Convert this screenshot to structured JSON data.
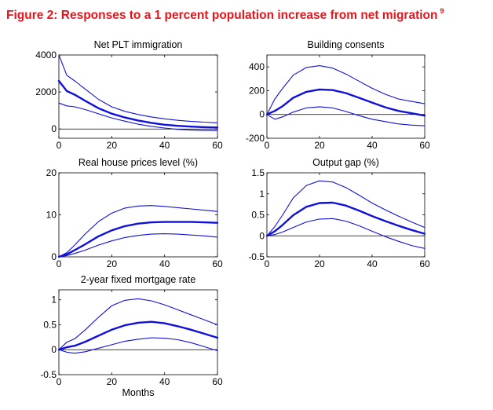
{
  "figure": {
    "title": "Figure 2: Responses to a 1 percent population increase from net migration",
    "footnote": "9",
    "line_color": "#1010d8",
    "title_color": "#e8141b",
    "xlabel": "Months"
  },
  "chart_data": [
    {
      "type": "line",
      "title": "Net PLT immigration",
      "xlim": [
        0,
        60
      ],
      "ylim": [
        -500,
        4000
      ],
      "xticks": [
        0,
        20,
        40,
        60
      ],
      "yticks": [
        0,
        2000,
        4000
      ],
      "x": [
        0,
        3,
        6,
        10,
        15,
        20,
        25,
        30,
        35,
        40,
        45,
        50,
        55,
        60
      ],
      "series": [
        {
          "role": "upper",
          "values": [
            4000,
            2900,
            2600,
            2150,
            1600,
            1200,
            950,
            780,
            650,
            550,
            470,
            410,
            370,
            330
          ]
        },
        {
          "role": "median",
          "values": [
            2600,
            2050,
            1850,
            1520,
            1120,
            830,
            620,
            460,
            330,
            230,
            170,
            130,
            100,
            80
          ]
        },
        {
          "role": "lower",
          "values": [
            1400,
            1250,
            1200,
            1050,
            820,
            600,
            420,
            260,
            140,
            50,
            -20,
            -60,
            -80,
            -90
          ]
        }
      ],
      "zero_line": true
    },
    {
      "type": "line",
      "title": "Building consents",
      "xlim": [
        0,
        60
      ],
      "ylim": [
        -200,
        500
      ],
      "xticks": [
        0,
        20,
        40,
        60
      ],
      "yticks": [
        -200,
        0,
        200,
        400
      ],
      "x": [
        0,
        3,
        6,
        10,
        15,
        20,
        25,
        30,
        35,
        40,
        45,
        50,
        55,
        60
      ],
      "series": [
        {
          "role": "upper",
          "values": [
            0,
            130,
            220,
            330,
            395,
            410,
            390,
            340,
            280,
            220,
            170,
            130,
            110,
            90
          ]
        },
        {
          "role": "median",
          "values": [
            0,
            30,
            70,
            140,
            190,
            210,
            205,
            180,
            140,
            100,
            60,
            30,
            10,
            -10
          ]
        },
        {
          "role": "lower",
          "values": [
            0,
            -40,
            -20,
            20,
            55,
            65,
            55,
            25,
            -10,
            -40,
            -60,
            -80,
            -90,
            -95
          ]
        }
      ],
      "zero_line": true
    },
    {
      "type": "line",
      "title": "Real house prices level (%)",
      "xlim": [
        0,
        60
      ],
      "ylim": [
        0,
        20
      ],
      "xticks": [
        0,
        20,
        40,
        60
      ],
      "yticks": [
        0,
        10,
        20
      ],
      "x": [
        0,
        3,
        6,
        10,
        15,
        20,
        25,
        30,
        35,
        40,
        45,
        50,
        55,
        60
      ],
      "series": [
        {
          "role": "upper",
          "values": [
            0,
            1.0,
            2.8,
            5.5,
            8.4,
            10.4,
            11.6,
            12.1,
            12.2,
            12.0,
            11.7,
            11.4,
            11.1,
            10.8
          ]
        },
        {
          "role": "median",
          "values": [
            0,
            0.6,
            1.6,
            3.0,
            4.9,
            6.3,
            7.3,
            7.9,
            8.2,
            8.3,
            8.3,
            8.3,
            8.2,
            8.1
          ]
        },
        {
          "role": "lower",
          "values": [
            0,
            0.3,
            0.8,
            1.6,
            2.8,
            3.8,
            4.6,
            5.1,
            5.4,
            5.5,
            5.4,
            5.2,
            5.0,
            4.7
          ]
        }
      ],
      "zero_line": false
    },
    {
      "type": "line",
      "title": "Output gap (%)",
      "xlim": [
        0,
        60
      ],
      "ylim": [
        -0.5,
        1.5
      ],
      "xticks": [
        0,
        20,
        40,
        60
      ],
      "yticks": [
        -0.5,
        0,
        0.5,
        1,
        1.5
      ],
      "x": [
        0,
        3,
        6,
        10,
        15,
        20,
        25,
        30,
        35,
        40,
        45,
        50,
        55,
        60
      ],
      "series": [
        {
          "role": "upper",
          "values": [
            0,
            0.22,
            0.5,
            0.9,
            1.2,
            1.31,
            1.28,
            1.15,
            0.97,
            0.78,
            0.62,
            0.47,
            0.33,
            0.2
          ]
        },
        {
          "role": "median",
          "values": [
            0,
            0.11,
            0.26,
            0.49,
            0.69,
            0.78,
            0.79,
            0.72,
            0.6,
            0.47,
            0.35,
            0.24,
            0.14,
            0.05
          ]
        },
        {
          "role": "lower",
          "values": [
            0,
            0.03,
            0.09,
            0.2,
            0.33,
            0.4,
            0.41,
            0.35,
            0.24,
            0.11,
            -0.02,
            -0.13,
            -0.23,
            -0.3
          ]
        }
      ],
      "zero_line": true
    },
    {
      "type": "line",
      "title": "2-year fixed mortgage rate",
      "xlabel": "Months",
      "xlim": [
        0,
        60
      ],
      "ylim": [
        -0.5,
        1.2
      ],
      "xticks": [
        0,
        20,
        40,
        60
      ],
      "yticks": [
        -0.5,
        0,
        0.5,
        1
      ],
      "x": [
        0,
        3,
        6,
        10,
        15,
        20,
        25,
        30,
        35,
        40,
        45,
        50,
        55,
        60
      ],
      "series": [
        {
          "role": "upper",
          "values": [
            0,
            0.15,
            0.22,
            0.4,
            0.65,
            0.88,
            0.99,
            1.02,
            0.98,
            0.9,
            0.8,
            0.7,
            0.6,
            0.5
          ]
        },
        {
          "role": "median",
          "values": [
            0,
            0.05,
            0.08,
            0.16,
            0.28,
            0.4,
            0.49,
            0.54,
            0.56,
            0.53,
            0.47,
            0.4,
            0.32,
            0.24
          ]
        },
        {
          "role": "lower",
          "values": [
            0,
            -0.05,
            -0.07,
            -0.04,
            0.03,
            0.1,
            0.17,
            0.21,
            0.24,
            0.23,
            0.2,
            0.14,
            0.06,
            -0.02
          ]
        }
      ],
      "zero_line": true
    }
  ]
}
